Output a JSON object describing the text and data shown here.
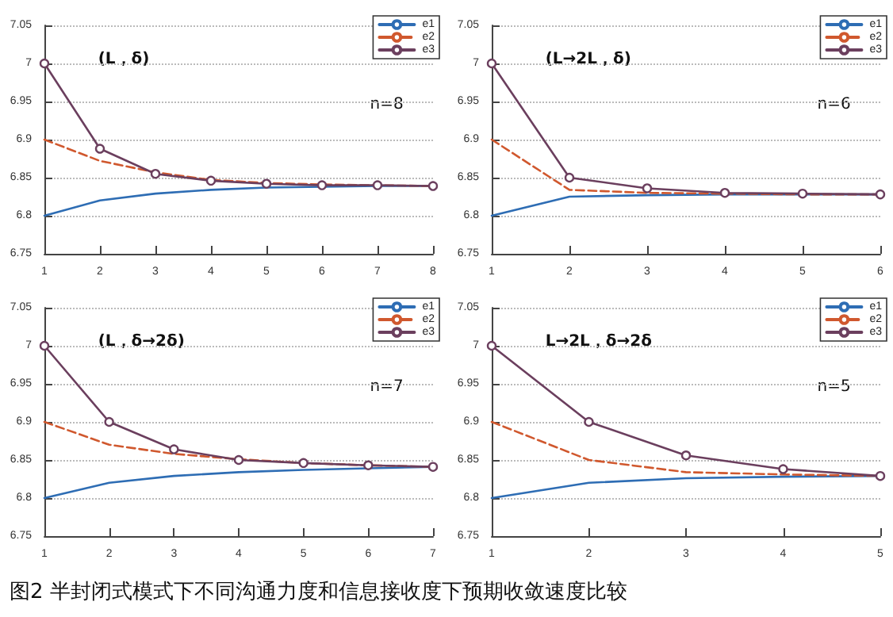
{
  "chart_data": [
    {
      "type": "line",
      "x": [
        1,
        2,
        3,
        4,
        5,
        6,
        7,
        8
      ],
      "xlim": [
        1,
        8
      ],
      "xticks": [
        1,
        2,
        3,
        4,
        5,
        6,
        7,
        8
      ],
      "ylim": [
        6.75,
        7.05
      ],
      "yticks": [
        6.75,
        6.8,
        6.85,
        6.9,
        6.95,
        7,
        7.05
      ],
      "grid": "y",
      "legend": "top right",
      "series": [
        {
          "name": "e1",
          "color": "#2e6db4",
          "line_style": "solid",
          "marker": "none",
          "values": [
            6.8,
            6.82,
            6.829,
            6.834,
            6.837,
            6.838,
            6.839,
            6.839
          ]
        },
        {
          "name": "e2",
          "color": "#d0582e",
          "line_style": "dashed",
          "marker": "none",
          "values": [
            6.9,
            6.872,
            6.857,
            6.847,
            6.843,
            6.841,
            6.84,
            6.839
          ]
        },
        {
          "name": "e3",
          "color": "#6b3f5e",
          "line_style": "solid",
          "marker": "circle",
          "values": [
            7,
            6.888,
            6.855,
            6.846,
            6.842,
            6.84,
            6.84,
            6.839
          ]
        }
      ],
      "annotations": [
        "(L，δ)",
        "n=8"
      ]
    },
    {
      "type": "line",
      "x": [
        1,
        2,
        3,
        4,
        5,
        6
      ],
      "xlim": [
        1,
        6
      ],
      "xticks": [
        1,
        2,
        3,
        4,
        5,
        6
      ],
      "ylim": [
        6.75,
        7.05
      ],
      "yticks": [
        6.75,
        6.8,
        6.85,
        6.9,
        6.95,
        7,
        7.05
      ],
      "grid": "y",
      "legend": "top right",
      "series": [
        {
          "name": "e1",
          "color": "#2e6db4",
          "line_style": "solid",
          "marker": "none",
          "values": [
            6.8,
            6.825,
            6.827,
            6.828,
            6.828,
            6.828
          ]
        },
        {
          "name": "e2",
          "color": "#d0582e",
          "line_style": "dashed",
          "marker": "none",
          "values": [
            6.9,
            6.834,
            6.83,
            6.829,
            6.828,
            6.828
          ]
        },
        {
          "name": "e3",
          "color": "#6b3f5e",
          "line_style": "solid",
          "marker": "circle",
          "values": [
            7,
            6.85,
            6.836,
            6.83,
            6.829,
            6.828
          ]
        }
      ],
      "annotations": [
        "(L→2L，δ)",
        "n=6"
      ]
    },
    {
      "type": "line",
      "x": [
        1,
        2,
        3,
        4,
        5,
        6,
        7
      ],
      "xlim": [
        1,
        7
      ],
      "xticks": [
        1,
        2,
        3,
        4,
        5,
        6,
        7
      ],
      "ylim": [
        6.75,
        7.05
      ],
      "yticks": [
        6.75,
        6.8,
        6.85,
        6.9,
        6.95,
        7,
        7.05
      ],
      "grid": "y",
      "legend": "top right",
      "series": [
        {
          "name": "e1",
          "color": "#2e6db4",
          "line_style": "solid",
          "marker": "none",
          "values": [
            6.8,
            6.82,
            6.829,
            6.834,
            6.837,
            6.839,
            6.841
          ]
        },
        {
          "name": "e2",
          "color": "#d0582e",
          "line_style": "dashed",
          "marker": "none",
          "values": [
            6.9,
            6.87,
            6.858,
            6.851,
            6.846,
            6.843,
            6.841
          ]
        },
        {
          "name": "e3",
          "color": "#6b3f5e",
          "line_style": "solid",
          "marker": "circle",
          "values": [
            7,
            6.9,
            6.864,
            6.85,
            6.846,
            6.843,
            6.841
          ]
        }
      ],
      "annotations": [
        "(L，δ→2δ)",
        "n=7"
      ]
    },
    {
      "type": "line",
      "x": [
        1,
        2,
        3,
        4,
        5
      ],
      "xlim": [
        1,
        5
      ],
      "xticks": [
        1,
        2,
        3,
        4,
        5
      ],
      "ylim": [
        6.75,
        7.05
      ],
      "yticks": [
        6.75,
        6.8,
        6.85,
        6.9,
        6.95,
        7,
        7.05
      ],
      "grid": "y",
      "legend": "top right",
      "series": [
        {
          "name": "e1",
          "color": "#2e6db4",
          "line_style": "solid",
          "marker": "none",
          "values": [
            6.8,
            6.82,
            6.826,
            6.828,
            6.829
          ]
        },
        {
          "name": "e2",
          "color": "#d0582e",
          "line_style": "dashed",
          "marker": "none",
          "values": [
            6.9,
            6.85,
            6.834,
            6.831,
            6.829
          ]
        },
        {
          "name": "e3",
          "color": "#6b3f5e",
          "line_style": "solid",
          "marker": "circle",
          "values": [
            7,
            6.9,
            6.856,
            6.838,
            6.829
          ]
        }
      ],
      "annotations": [
        "L→2L，δ→2δ",
        "n=5",
        "图2 半封闭式模式下不同沟通力度和信息接收度下预期收敛速度比较"
      ]
    }
  ]
}
